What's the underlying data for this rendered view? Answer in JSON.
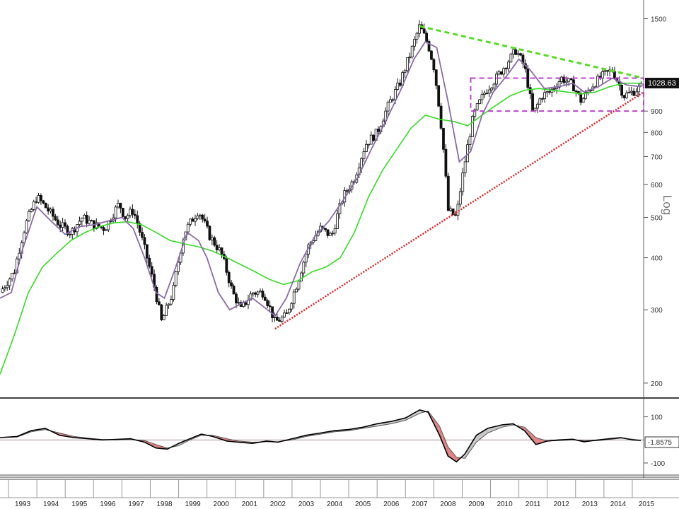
{
  "chart_data": {
    "type": "candlestick",
    "scale": "log",
    "axis_label": "Log",
    "y_ticks": [
      200,
      300,
      400,
      500,
      600,
      700,
      800,
      900,
      1500
    ],
    "x_ticks": [
      "1993",
      "1994",
      "1995",
      "1996",
      "1997",
      "1998",
      "1999",
      "2000",
      "2001",
      "2002",
      "2003",
      "2004",
      "2005",
      "2006",
      "2007",
      "2008",
      "2009",
      "2010",
      "2011",
      "2012",
      "2013",
      "2014",
      "2015"
    ],
    "x_range": [
      1992.7,
      2015.4
    ],
    "y_range": [
      190,
      1600
    ],
    "last_value": "1028.63",
    "colors": {
      "short_ma": "#8a6aa8",
      "long_ma": "#33dd22",
      "resistance_line": "#55dd22",
      "support_line": "#dd2222",
      "range_box": "#bb44cc",
      "candle": "#111111",
      "badge": "#111111"
    },
    "price_path": [
      [
        1992.7,
        330
      ],
      [
        1993.2,
        370
      ],
      [
        1993.6,
        480
      ],
      [
        1994.0,
        560
      ],
      [
        1994.4,
        520
      ],
      [
        1994.8,
        480
      ],
      [
        1995.2,
        460
      ],
      [
        1995.6,
        500
      ],
      [
        1996.0,
        480
      ],
      [
        1996.4,
        470
      ],
      [
        1996.9,
        540
      ],
      [
        1997.1,
        500
      ],
      [
        1997.4,
        520
      ],
      [
        1997.8,
        420
      ],
      [
        1998.1,
        350
      ],
      [
        1998.4,
        280
      ],
      [
        1998.8,
        330
      ],
      [
        1999.2,
        460
      ],
      [
        1999.7,
        520
      ],
      [
        2000.1,
        450
      ],
      [
        2000.5,
        410
      ],
      [
        2000.9,
        330
      ],
      [
        2001.2,
        300
      ],
      [
        2001.6,
        330
      ],
      [
        2002.0,
        330
      ],
      [
        2002.4,
        280
      ],
      [
        2002.8,
        290
      ],
      [
        2003.2,
        350
      ],
      [
        2003.6,
        430
      ],
      [
        2004.0,
        470
      ],
      [
        2004.4,
        450
      ],
      [
        2004.8,
        560
      ],
      [
        2005.2,
        620
      ],
      [
        2005.6,
        750
      ],
      [
        2006.0,
        800
      ],
      [
        2006.4,
        930
      ],
      [
        2006.8,
        1050
      ],
      [
        2007.2,
        1250
      ],
      [
        2007.5,
        1440
      ],
      [
        2007.8,
        1300
      ],
      [
        2008.0,
        1150
      ],
      [
        2008.3,
        780
      ],
      [
        2008.5,
        520
      ],
      [
        2008.8,
        500
      ],
      [
        2009.1,
        680
      ],
      [
        2009.4,
        880
      ],
      [
        2009.8,
        1000
      ],
      [
        2010.2,
        1080
      ],
      [
        2010.6,
        1180
      ],
      [
        2010.9,
        1260
      ],
      [
        2011.2,
        1150
      ],
      [
        2011.5,
        880
      ],
      [
        2011.8,
        980
      ],
      [
        2012.1,
        1000
      ],
      [
        2012.5,
        1080
      ],
      [
        2012.9,
        1040
      ],
      [
        2013.2,
        950
      ],
      [
        2013.6,
        1040
      ],
      [
        2014.0,
        1100
      ],
      [
        2014.3,
        1130
      ],
      [
        2014.7,
        980
      ],
      [
        2015.0,
        1000
      ],
      [
        2015.3,
        1028.63
      ]
    ],
    "short_ma": [
      [
        1992.7,
        320
      ],
      [
        1993.1,
        330
      ],
      [
        1993.5,
        420
      ],
      [
        1994.0,
        530
      ],
      [
        1994.5,
        490
      ],
      [
        1995.0,
        455
      ],
      [
        1995.5,
        475
      ],
      [
        1996.0,
        480
      ],
      [
        1996.5,
        490
      ],
      [
        1997.0,
        500
      ],
      [
        1997.4,
        470
      ],
      [
        1997.8,
        400
      ],
      [
        1998.2,
        330
      ],
      [
        1998.5,
        320
      ],
      [
        1998.9,
        380
      ],
      [
        1999.3,
        460
      ],
      [
        1999.7,
        440
      ],
      [
        2000.0,
        400
      ],
      [
        2000.4,
        330
      ],
      [
        2000.8,
        300
      ],
      [
        2001.2,
        310
      ],
      [
        2001.6,
        320
      ],
      [
        2002.0,
        305
      ],
      [
        2002.4,
        290
      ],
      [
        2002.8,
        320
      ],
      [
        2003.3,
        390
      ],
      [
        2003.8,
        450
      ],
      [
        2004.3,
        490
      ],
      [
        2004.8,
        550
      ],
      [
        2005.3,
        620
      ],
      [
        2005.8,
        730
      ],
      [
        2006.3,
        850
      ],
      [
        2006.8,
        1000
      ],
      [
        2007.3,
        1200
      ],
      [
        2007.7,
        1320
      ],
      [
        2008.1,
        1280
      ],
      [
        2008.5,
        950
      ],
      [
        2008.9,
        680
      ],
      [
        2009.3,
        720
      ],
      [
        2009.7,
        880
      ],
      [
        2010.1,
        1000
      ],
      [
        2010.6,
        1100
      ],
      [
        2011.0,
        1200
      ],
      [
        2011.4,
        1130
      ],
      [
        2011.9,
        1020
      ],
      [
        2012.4,
        1030
      ],
      [
        2012.9,
        1050
      ],
      [
        2013.3,
        1000
      ],
      [
        2013.8,
        1030
      ],
      [
        2014.3,
        1080
      ],
      [
        2014.8,
        1040
      ],
      [
        2015.3,
        1030
      ]
    ],
    "long_ma": [
      [
        1992.7,
        210
      ],
      [
        1993.2,
        260
      ],
      [
        1993.7,
        330
      ],
      [
        1994.2,
        380
      ],
      [
        1994.7,
        410
      ],
      [
        1995.2,
        440
      ],
      [
        1995.7,
        460
      ],
      [
        1996.2,
        475
      ],
      [
        1996.7,
        485
      ],
      [
        1997.2,
        488
      ],
      [
        1997.7,
        480
      ],
      [
        1998.2,
        460
      ],
      [
        1998.7,
        440
      ],
      [
        1999.2,
        432
      ],
      [
        1999.7,
        425
      ],
      [
        2000.2,
        415
      ],
      [
        2000.7,
        400
      ],
      [
        2001.2,
        385
      ],
      [
        2001.7,
        370
      ],
      [
        2002.2,
        355
      ],
      [
        2002.7,
        345
      ],
      [
        2003.2,
        352
      ],
      [
        2003.7,
        370
      ],
      [
        2004.2,
        380
      ],
      [
        2004.7,
        400
      ],
      [
        2005.2,
        460
      ],
      [
        2005.7,
        560
      ],
      [
        2006.2,
        650
      ],
      [
        2006.7,
        730
      ],
      [
        2007.2,
        820
      ],
      [
        2007.7,
        880
      ],
      [
        2008.2,
        860
      ],
      [
        2008.7,
        850
      ],
      [
        2009.2,
        830
      ],
      [
        2009.7,
        880
      ],
      [
        2010.2,
        930
      ],
      [
        2010.7,
        980
      ],
      [
        2011.2,
        1010
      ],
      [
        2011.7,
        1020
      ],
      [
        2012.2,
        1010
      ],
      [
        2012.7,
        1000
      ],
      [
        2013.2,
        990
      ],
      [
        2013.7,
        1000
      ],
      [
        2014.2,
        1030
      ],
      [
        2014.7,
        1050
      ],
      [
        2015.3,
        1050
      ]
    ],
    "support_line": [
      [
        2002.4,
        270
      ],
      [
        2015.4,
        1000
      ]
    ],
    "resistance_line": [
      [
        2007.5,
        1440
      ],
      [
        2015.4,
        1080
      ]
    ],
    "range_box": {
      "x": [
        2009.3,
        2015.4
      ],
      "y": [
        900,
        1080
      ]
    },
    "oscillator": {
      "y_ticks": [
        100,
        -100
      ],
      "y_range": [
        -140,
        160
      ],
      "last_value": "-1.8575",
      "fast": [
        [
          1992.7,
          10
        ],
        [
          1993.3,
          15
        ],
        [
          1993.8,
          40
        ],
        [
          1994.3,
          50
        ],
        [
          1994.8,
          20
        ],
        [
          1995.3,
          10
        ],
        [
          1995.8,
          5
        ],
        [
          1996.3,
          0
        ],
        [
          1996.8,
          2
        ],
        [
          1997.3,
          5
        ],
        [
          1997.8,
          -10
        ],
        [
          1998.2,
          -35
        ],
        [
          1998.6,
          -40
        ],
        [
          1999.0,
          -15
        ],
        [
          1999.4,
          5
        ],
        [
          1999.8,
          25
        ],
        [
          2000.2,
          15
        ],
        [
          2000.7,
          -5
        ],
        [
          2001.1,
          -10
        ],
        [
          2001.6,
          -15
        ],
        [
          2002.1,
          -5
        ],
        [
          2002.5,
          -10
        ],
        [
          2003.0,
          5
        ],
        [
          2003.5,
          20
        ],
        [
          2004.0,
          30
        ],
        [
          2004.5,
          40
        ],
        [
          2005.0,
          45
        ],
        [
          2005.5,
          55
        ],
        [
          2006.0,
          70
        ],
        [
          2006.5,
          80
        ],
        [
          2007.0,
          95
        ],
        [
          2007.5,
          130
        ],
        [
          2007.8,
          120
        ],
        [
          2008.2,
          20
        ],
        [
          2008.5,
          -70
        ],
        [
          2008.8,
          -95
        ],
        [
          2009.1,
          -60
        ],
        [
          2009.5,
          20
        ],
        [
          2009.9,
          50
        ],
        [
          2010.4,
          65
        ],
        [
          2010.8,
          70
        ],
        [
          2011.2,
          40
        ],
        [
          2011.6,
          -20
        ],
        [
          2012.0,
          -5
        ],
        [
          2012.4,
          0
        ],
        [
          2012.9,
          3
        ],
        [
          2013.3,
          -8
        ],
        [
          2013.8,
          0
        ],
        [
          2014.2,
          5
        ],
        [
          2014.6,
          10
        ],
        [
          2015.0,
          0
        ],
        [
          2015.3,
          -2
        ]
      ],
      "slow": [
        [
          1992.7,
          10
        ],
        [
          1993.3,
          12
        ],
        [
          1993.8,
          35
        ],
        [
          1994.3,
          45
        ],
        [
          1994.8,
          30
        ],
        [
          1995.3,
          15
        ],
        [
          1995.8,
          8
        ],
        [
          1996.3,
          2
        ],
        [
          1996.8,
          0
        ],
        [
          1997.3,
          2
        ],
        [
          1997.8,
          -3
        ],
        [
          1998.2,
          -20
        ],
        [
          1998.6,
          -35
        ],
        [
          1999.0,
          -25
        ],
        [
          1999.4,
          0
        ],
        [
          1999.8,
          20
        ],
        [
          2000.2,
          20
        ],
        [
          2000.7,
          5
        ],
        [
          2001.1,
          -5
        ],
        [
          2001.6,
          -10
        ],
        [
          2002.1,
          -8
        ],
        [
          2002.5,
          -8
        ],
        [
          2003.0,
          0
        ],
        [
          2003.5,
          15
        ],
        [
          2004.0,
          25
        ],
        [
          2004.5,
          35
        ],
        [
          2005.0,
          40
        ],
        [
          2005.5,
          50
        ],
        [
          2006.0,
          60
        ],
        [
          2006.5,
          70
        ],
        [
          2007.0,
          85
        ],
        [
          2007.5,
          115
        ],
        [
          2007.8,
          125
        ],
        [
          2008.2,
          60
        ],
        [
          2008.5,
          -30
        ],
        [
          2008.8,
          -75
        ],
        [
          2009.1,
          -80
        ],
        [
          2009.5,
          -10
        ],
        [
          2009.9,
          30
        ],
        [
          2010.4,
          55
        ],
        [
          2010.8,
          65
        ],
        [
          2011.2,
          55
        ],
        [
          2011.6,
          10
        ],
        [
          2012.0,
          -5
        ],
        [
          2012.4,
          -3
        ],
        [
          2012.9,
          0
        ],
        [
          2013.3,
          -3
        ],
        [
          2013.8,
          -3
        ],
        [
          2014.2,
          2
        ],
        [
          2014.6,
          8
        ],
        [
          2015.0,
          3
        ],
        [
          2015.3,
          -1.86
        ]
      ]
    }
  }
}
